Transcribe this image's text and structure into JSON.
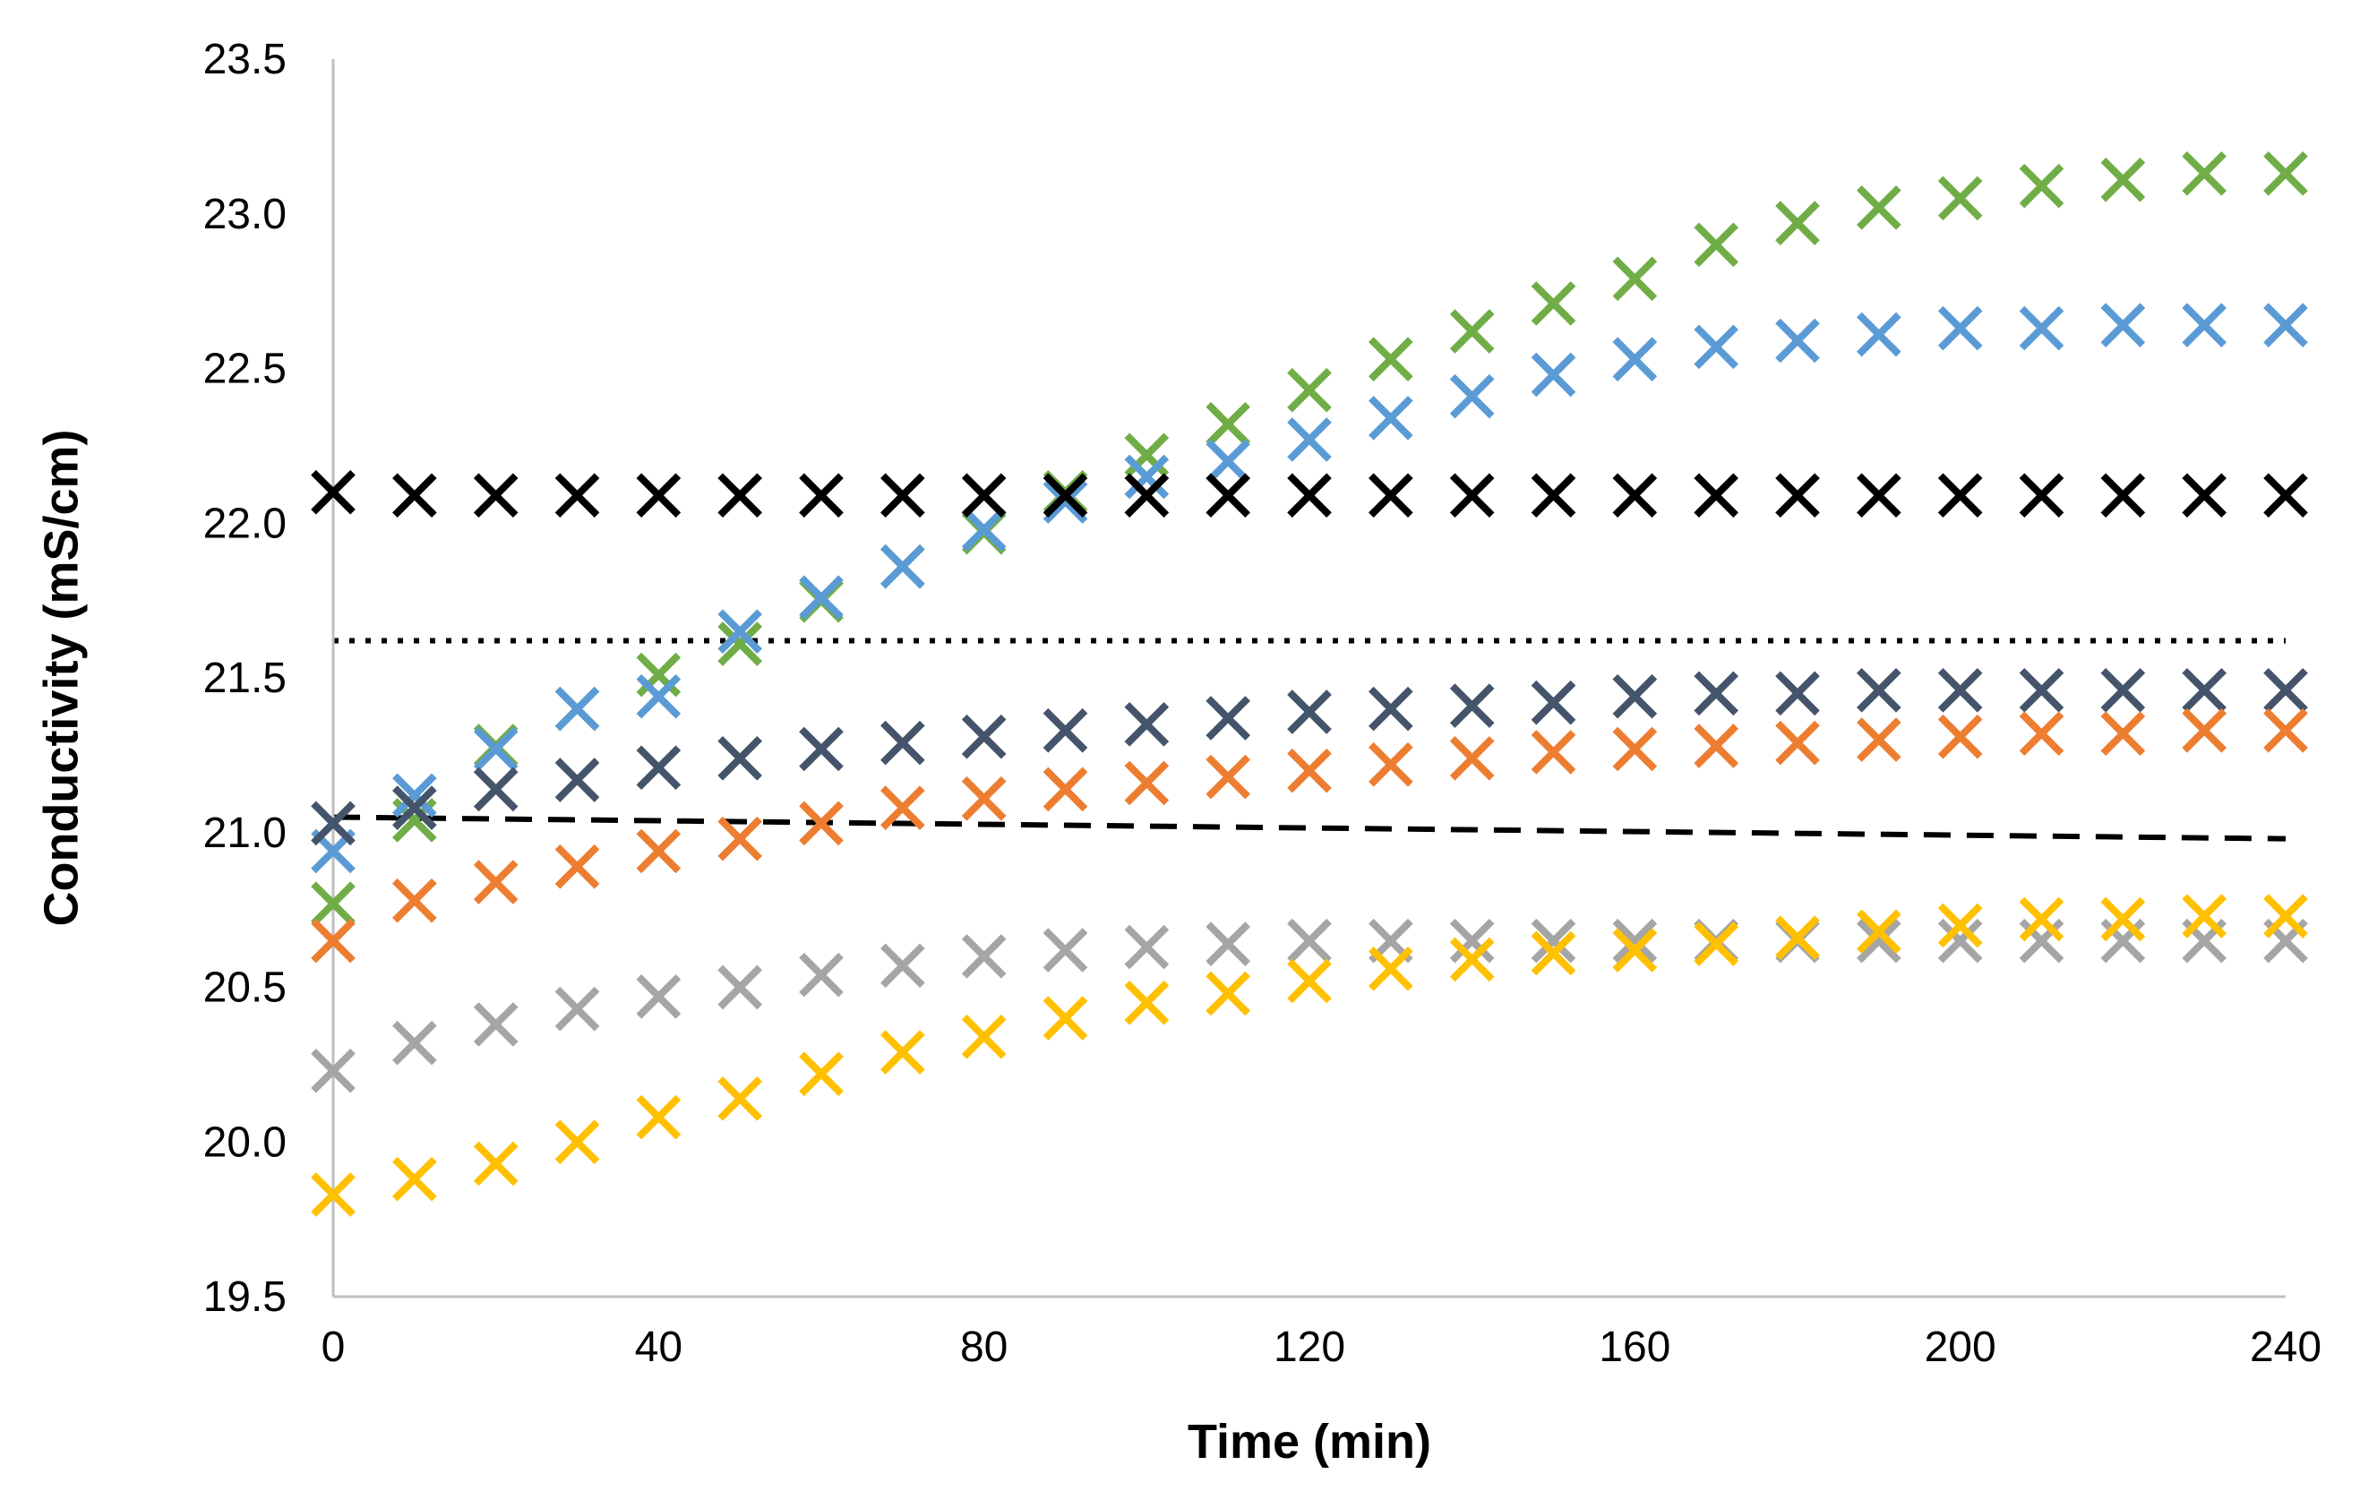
{
  "chart_data": {
    "type": "scatter",
    "title": "",
    "xlabel": "Time (min)",
    "ylabel": "Conductivity (mS/cm)",
    "xlim": [
      0,
      240
    ],
    "ylim": [
      19.5,
      23.5
    ],
    "xticks": [
      "0",
      "40",
      "80",
      "120",
      "160",
      "200",
      "240"
    ],
    "yticks": [
      "19.5",
      "20.0",
      "20.5",
      "21.0",
      "21.5",
      "22.0",
      "22.5",
      "23.0",
      "23.5"
    ],
    "x": [
      0,
      10,
      20,
      30,
      40,
      50,
      60,
      70,
      80,
      90,
      100,
      110,
      120,
      130,
      140,
      150,
      160,
      170,
      180,
      190,
      200,
      210,
      220,
      230,
      240
    ],
    "grid": false,
    "legend": "none",
    "series": [
      {
        "name": "green",
        "color": "#70AD47",
        "marker": "x",
        "values": [
          20.77,
          21.04,
          21.28,
          21.4,
          21.51,
          21.61,
          21.75,
          21.86,
          21.97,
          22.1,
          22.22,
          22.32,
          22.43,
          22.53,
          22.62,
          22.71,
          22.79,
          22.9,
          22.97,
          23.02,
          23.05,
          23.09,
          23.11,
          23.13,
          23.13
        ]
      },
      {
        "name": "blue",
        "color": "#5B9BD5",
        "marker": "x",
        "values": [
          20.94,
          21.12,
          21.27,
          21.4,
          21.44,
          21.65,
          21.76,
          21.86,
          21.98,
          22.07,
          22.15,
          22.2,
          22.27,
          22.34,
          22.41,
          22.48,
          22.53,
          22.57,
          22.59,
          22.61,
          22.63,
          22.63,
          22.64,
          22.64,
          22.64
        ]
      },
      {
        "name": "black",
        "color": "#000000",
        "marker": "x",
        "values": [
          22.1,
          22.09,
          22.09,
          22.09,
          22.09,
          22.09,
          22.09,
          22.09,
          22.09,
          22.09,
          22.09,
          22.09,
          22.09,
          22.09,
          22.09,
          22.09,
          22.09,
          22.09,
          22.09,
          22.09,
          22.09,
          22.09,
          22.09,
          22.09,
          22.09
        ]
      },
      {
        "name": "dark-blue-gray",
        "color": "#44546A",
        "marker": "x",
        "values": [
          21.03,
          21.08,
          21.14,
          21.17,
          21.21,
          21.24,
          21.27,
          21.29,
          21.31,
          21.33,
          21.35,
          21.37,
          21.39,
          21.4,
          21.41,
          21.42,
          21.44,
          21.45,
          21.45,
          21.46,
          21.46,
          21.46,
          21.46,
          21.46,
          21.46
        ]
      },
      {
        "name": "orange",
        "color": "#ED7D31",
        "marker": "x",
        "values": [
          20.65,
          20.78,
          20.84,
          20.89,
          20.94,
          20.98,
          21.03,
          21.08,
          21.11,
          21.14,
          21.16,
          21.18,
          21.2,
          21.22,
          21.24,
          21.26,
          21.27,
          21.28,
          21.29,
          21.3,
          21.31,
          21.32,
          21.32,
          21.33,
          21.33
        ]
      },
      {
        "name": "gray",
        "color": "#A5A5A5",
        "marker": "x",
        "values": [
          20.23,
          20.32,
          20.38,
          20.43,
          20.47,
          20.5,
          20.54,
          20.57,
          20.6,
          20.62,
          20.63,
          20.64,
          20.65,
          20.65,
          20.65,
          20.65,
          20.65,
          20.65,
          20.65,
          20.65,
          20.65,
          20.65,
          20.65,
          20.65,
          20.65
        ]
      },
      {
        "name": "yellow",
        "color": "#FFC000",
        "marker": "x",
        "values": [
          19.83,
          19.88,
          19.93,
          20.0,
          20.08,
          20.14,
          20.22,
          20.29,
          20.34,
          20.4,
          20.45,
          20.48,
          20.52,
          20.56,
          20.59,
          20.61,
          20.62,
          20.64,
          20.66,
          20.68,
          20.7,
          20.72,
          20.72,
          20.73,
          20.73
        ]
      }
    ],
    "reference_lines": [
      {
        "name": "dotted-reference",
        "color": "#000000",
        "style": "dotted",
        "x": [
          0,
          240
        ],
        "y": [
          21.62,
          21.62
        ]
      },
      {
        "name": "dashed-reference",
        "color": "#000000",
        "style": "dashed",
        "x": [
          0,
          240
        ],
        "y": [
          21.05,
          20.98
        ]
      }
    ]
  }
}
